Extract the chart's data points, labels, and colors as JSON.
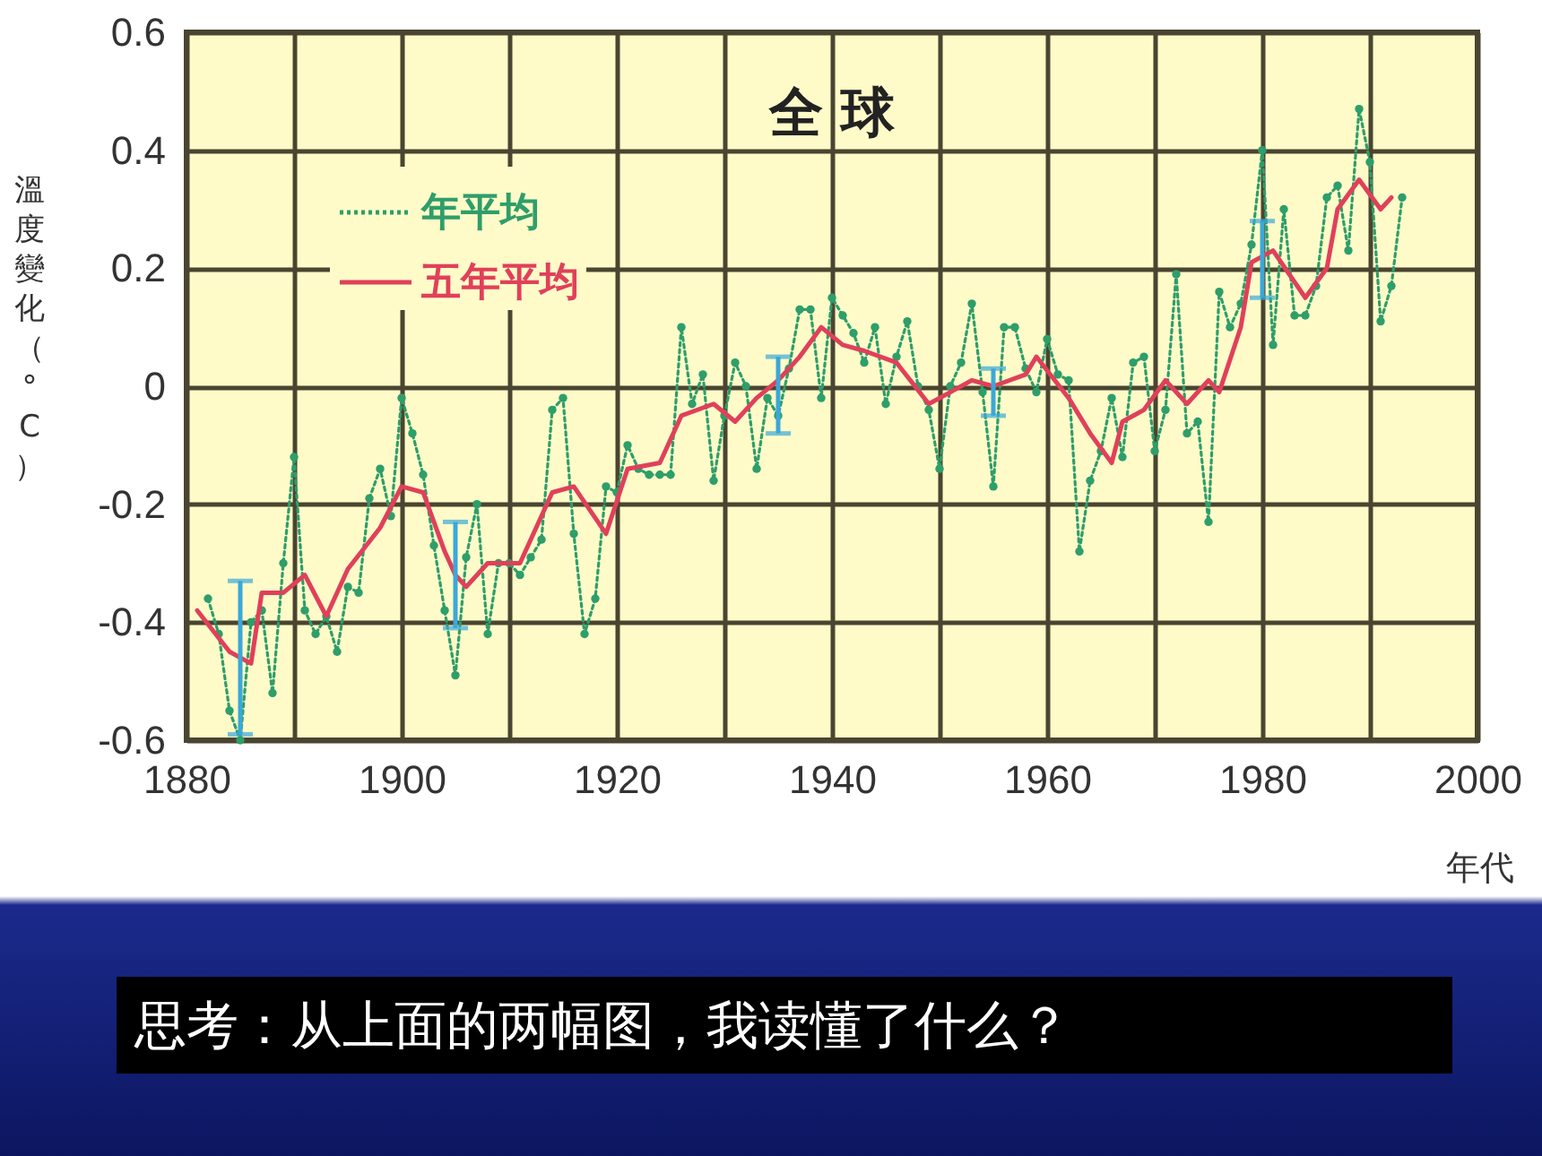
{
  "chart_data": {
    "type": "line",
    "title": "全 球",
    "xlabel": "年代",
    "ylabel": "溫度變化（°C）",
    "xlim": [
      1880,
      2000
    ],
    "xticks": [
      1880,
      {
        "value": 1890,
        "label": null
      },
      1900,
      {
        "value": 1910,
        "label": null
      },
      1920,
      {
        "value": 1930,
        "label": null
      },
      1940,
      {
        "value": 1950,
        "label": null
      },
      1960,
      {
        "value": 1970,
        "label": null
      },
      1980,
      {
        "value": 1990,
        "label": null
      },
      2000
    ],
    "ylim": [
      -0.6,
      0.6
    ],
    "yticks": [
      -0.6,
      -0.4,
      -0.2,
      0,
      0.2,
      0.4,
      0.6
    ],
    "grid": true,
    "legend": "top left",
    "series": [
      {
        "name": "年平均",
        "color": "#2e9e6a",
        "line_style": "dotted",
        "marker": "circle",
        "x": [
          1882,
          1883,
          1884,
          1885,
          1886,
          1887,
          1888,
          1889,
          1890,
          1891,
          1892,
          1893,
          1894,
          1895,
          1896,
          1897,
          1898,
          1899,
          1900,
          1901,
          1902,
          1903,
          1904,
          1905,
          1906,
          1907,
          1908,
          1909,
          1910,
          1911,
          1912,
          1913,
          1914,
          1915,
          1916,
          1917,
          1918,
          1919,
          1920,
          1921,
          1922,
          1923,
          1924,
          1925,
          1926,
          1927,
          1928,
          1929,
          1930,
          1931,
          1932,
          1933,
          1934,
          1935,
          1936,
          1937,
          1938,
          1939,
          1940,
          1941,
          1942,
          1943,
          1944,
          1945,
          1946,
          1947,
          1948,
          1949,
          1950,
          1951,
          1952,
          1953,
          1954,
          1955,
          1956,
          1957,
          1958,
          1959,
          1960,
          1961,
          1962,
          1963,
          1964,
          1965,
          1966,
          1967,
          1968,
          1969,
          1970,
          1971,
          1972,
          1973,
          1974,
          1975,
          1976,
          1977,
          1978,
          1979,
          1980,
          1981,
          1982,
          1983,
          1984,
          1985,
          1986,
          1987,
          1988,
          1989,
          1990,
          1991,
          1992,
          1993
        ],
        "values": [
          -0.36,
          -0.42,
          -0.55,
          -0.6,
          -0.4,
          -0.38,
          -0.52,
          -0.3,
          -0.12,
          -0.38,
          -0.42,
          -0.39,
          -0.45,
          -0.34,
          -0.35,
          -0.19,
          -0.14,
          -0.22,
          -0.02,
          -0.08,
          -0.15,
          -0.27,
          -0.38,
          -0.49,
          -0.29,
          -0.2,
          -0.42,
          -0.3,
          -0.3,
          -0.32,
          -0.29,
          -0.26,
          -0.04,
          -0.02,
          -0.25,
          -0.42,
          -0.36,
          -0.17,
          -0.18,
          -0.1,
          -0.14,
          -0.15,
          -0.15,
          -0.15,
          0.1,
          -0.03,
          0.02,
          -0.16,
          -0.05,
          0.04,
          0.0,
          -0.14,
          -0.02,
          -0.05,
          0.03,
          0.13,
          0.13,
          -0.02,
          0.15,
          0.12,
          0.09,
          0.04,
          0.1,
          -0.03,
          0.05,
          0.11,
          0.0,
          -0.04,
          -0.14,
          0.0,
          0.04,
          0.14,
          -0.01,
          -0.17,
          0.1,
          0.1,
          0.03,
          -0.01,
          0.08,
          0.02,
          0.01,
          -0.28,
          -0.16,
          -0.11,
          -0.02,
          -0.12,
          0.04,
          0.05,
          -0.11,
          -0.04,
          0.19,
          -0.08,
          -0.06,
          -0.23,
          0.16,
          0.1,
          0.14,
          0.24,
          0.4,
          0.07,
          0.3,
          0.12,
          0.12,
          0.17,
          0.32,
          0.34,
          0.23,
          0.47,
          0.38,
          0.11,
          0.17,
          0.32
        ]
      },
      {
        "name": "五年平均",
        "color": "#e0405a",
        "line_style": "solid",
        "marker": "none",
        "x": [
          1881,
          1884,
          1885,
          1886,
          1887,
          1889,
          1891,
          1893,
          1895,
          1898,
          1900,
          1902,
          1904,
          1905,
          1906,
          1908,
          1911,
          1914,
          1916,
          1919,
          1921,
          1924,
          1926,
          1929,
          1931,
          1933,
          1935,
          1937,
          1939,
          1941,
          1943,
          1946,
          1949,
          1951,
          1953,
          1955,
          1958,
          1959,
          1962,
          1964,
          1966,
          1967,
          1969,
          1971,
          1973,
          1975,
          1976,
          1978,
          1979,
          1980,
          1981,
          1984,
          1986,
          1987,
          1989,
          1991,
          1992
        ],
        "values": [
          -0.38,
          -0.45,
          -0.46,
          -0.47,
          -0.35,
          -0.35,
          -0.32,
          -0.39,
          -0.31,
          -0.24,
          -0.17,
          -0.18,
          -0.28,
          -0.32,
          -0.34,
          -0.3,
          -0.3,
          -0.18,
          -0.17,
          -0.25,
          -0.14,
          -0.13,
          -0.05,
          -0.03,
          -0.06,
          -0.02,
          0.01,
          0.05,
          0.1,
          0.07,
          0.06,
          0.04,
          -0.03,
          -0.01,
          0.01,
          0.0,
          0.02,
          0.05,
          -0.02,
          -0.08,
          -0.13,
          -0.06,
          -0.04,
          0.01,
          -0.03,
          0.01,
          -0.01,
          0.1,
          0.21,
          0.22,
          0.23,
          0.15,
          0.2,
          0.3,
          0.35,
          0.3,
          0.32
        ],
        "errors": [
          null,
          null,
          [
            -0.59,
            -0.33
          ],
          null,
          null,
          null,
          null,
          null,
          null,
          null,
          null,
          null,
          null,
          [
            -0.41,
            -0.23
          ],
          null,
          null,
          null,
          null,
          null,
          null,
          null,
          null,
          null,
          null,
          null,
          null,
          [
            -0.08,
            0.05
          ],
          null,
          null,
          null,
          null,
          null,
          null,
          null,
          null,
          [
            -0.05,
            0.03
          ],
          null,
          null,
          null,
          null,
          null,
          null,
          null,
          null,
          null,
          null,
          null,
          null,
          null,
          [
            0.15,
            0.28
          ],
          null,
          null,
          null,
          null,
          null,
          null,
          null
        ]
      }
    ],
    "annotations": [
      "思考：从上面的两幅图，我读懂了什么？"
    ]
  }
}
